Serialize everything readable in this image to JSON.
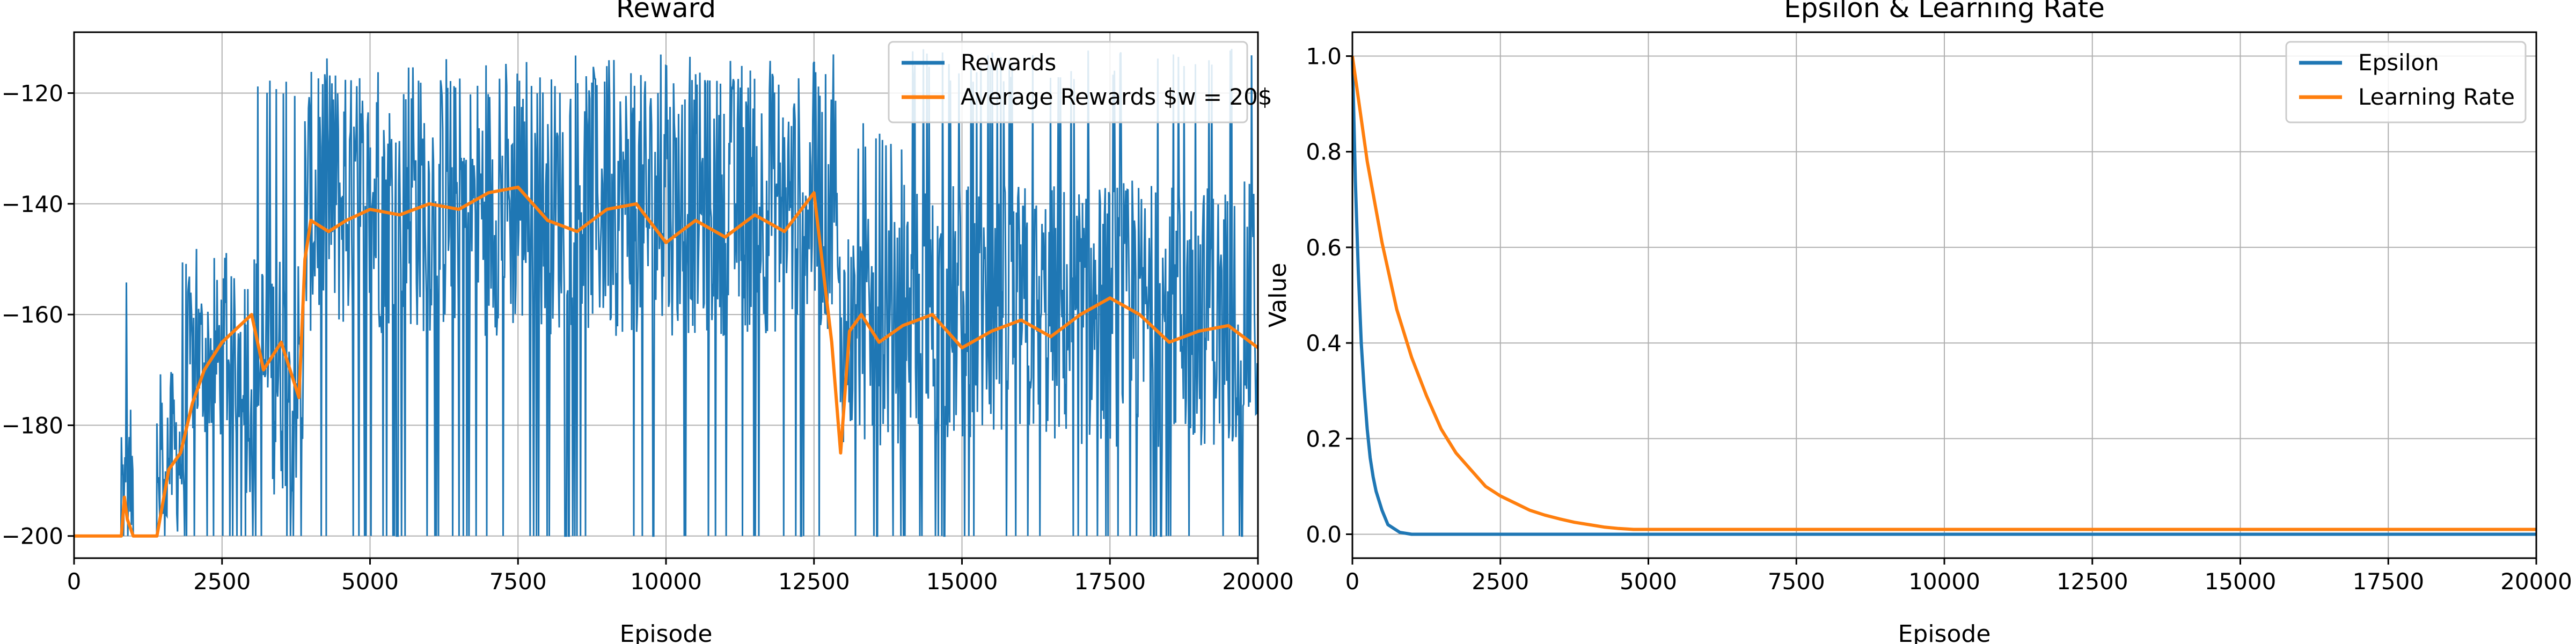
{
  "chart_data": [
    {
      "type": "line",
      "title": "Reward",
      "xlabel": "Episode",
      "ylabel": "",
      "xlim": [
        0,
        20000
      ],
      "ylim": [
        -204,
        -109
      ],
      "grid": true,
      "legend": "top-right",
      "xticks": [
        0,
        2500,
        5000,
        7500,
        10000,
        12500,
        15000,
        17500,
        20000
      ],
      "yticks": [
        -200,
        -180,
        -160,
        -140,
        -120
      ],
      "series": [
        {
          "name": "Rewards",
          "color": "#1f77b4",
          "description": "noisy per-episode reward; value ranges per episode interval",
          "segments": [
            {
              "x": [
                0,
                800
              ],
              "min": -200,
              "max": -200,
              "mean": -200
            },
            {
              "x": [
                800,
                1000
              ],
              "min": -200,
              "max": -153,
              "mean": -190
            },
            {
              "x": [
                1000,
                1400
              ],
              "min": -200,
              "max": -200,
              "mean": -200
            },
            {
              "x": [
                1400,
                1900
              ],
              "min": -200,
              "max": -145,
              "mean": -185
            },
            {
              "x": [
                1900,
                2900
              ],
              "min": -200,
              "max": -145,
              "mean": -168
            },
            {
              "x": [
                2900,
                3900
              ],
              "min": -200,
              "max": -117,
              "mean": -170
            },
            {
              "x": [
                3900,
                12900
              ],
              "min": -200,
              "max": -113,
              "mean": -140
            },
            {
              "x": [
                12900,
                14000
              ],
              "min": -200,
              "max": -125,
              "mean": -163
            },
            {
              "x": [
                14000,
                20000
              ],
              "min": -200,
              "max": -112,
              "mean": -160
            }
          ]
        },
        {
          "name": "Average Rewards $w = 20$",
          "color": "#ff7f0e",
          "x": [
            0,
            800,
            850,
            900,
            1000,
            1400,
            1600,
            1800,
            2000,
            2200,
            2500,
            2800,
            3000,
            3200,
            3500,
            3800,
            3900,
            4000,
            4300,
            4600,
            5000,
            5500,
            6000,
            6500,
            7000,
            7500,
            8000,
            8500,
            9000,
            9500,
            10000,
            10500,
            11000,
            11500,
            12000,
            12500,
            12800,
            12950,
            13100,
            13300,
            13600,
            14000,
            14500,
            15000,
            15500,
            16000,
            16500,
            17000,
            17500,
            18000,
            18500,
            19000,
            19500,
            20000
          ],
          "y": [
            -200,
            -200,
            -193,
            -197,
            -200,
            -200,
            -188,
            -185,
            -176,
            -170,
            -165,
            -162,
            -160,
            -170,
            -165,
            -175,
            -150,
            -143,
            -145,
            -143,
            -141,
            -142,
            -140,
            -141,
            -138,
            -137,
            -143,
            -145,
            -141,
            -140,
            -147,
            -143,
            -146,
            -142,
            -145,
            -138,
            -165,
            -185,
            -163,
            -160,
            -165,
            -162,
            -160,
            -166,
            -163,
            -161,
            -164,
            -160,
            -157,
            -160,
            -165,
            -163,
            -162,
            -166
          ]
        }
      ]
    },
    {
      "type": "line",
      "title": "Epsilon & Learning Rate",
      "xlabel": "Episode",
      "ylabel": "Value",
      "xlim": [
        0,
        20000
      ],
      "ylim": [
        -0.05,
        1.05
      ],
      "grid": true,
      "legend": "top-right",
      "xticks": [
        0,
        2500,
        5000,
        7500,
        10000,
        12500,
        15000,
        17500,
        20000
      ],
      "yticks": [
        0.0,
        0.2,
        0.4,
        0.6,
        0.8,
        1.0
      ],
      "series": [
        {
          "name": "Epsilon",
          "color": "#1f77b4",
          "x": [
            0,
            50,
            100,
            150,
            200,
            250,
            300,
            350,
            400,
            500,
            600,
            800,
            1000,
            20000
          ],
          "y": [
            1.0,
            0.74,
            0.55,
            0.4,
            0.3,
            0.22,
            0.16,
            0.12,
            0.09,
            0.05,
            0.02,
            0.004,
            0.0,
            0.0
          ]
        },
        {
          "name": "Learning Rate",
          "color": "#ff7f0e",
          "x": [
            0,
            250,
            500,
            750,
            1000,
            1250,
            1500,
            1750,
            2000,
            2250,
            2500,
            2750,
            3000,
            3250,
            3500,
            3750,
            4000,
            4250,
            4500,
            4750,
            5000,
            20000
          ],
          "y": [
            1.0,
            0.78,
            0.61,
            0.47,
            0.37,
            0.29,
            0.22,
            0.17,
            0.135,
            0.1,
            0.08,
            0.065,
            0.05,
            0.04,
            0.032,
            0.025,
            0.02,
            0.015,
            0.012,
            0.01,
            0.01,
            0.01
          ]
        }
      ]
    }
  ]
}
